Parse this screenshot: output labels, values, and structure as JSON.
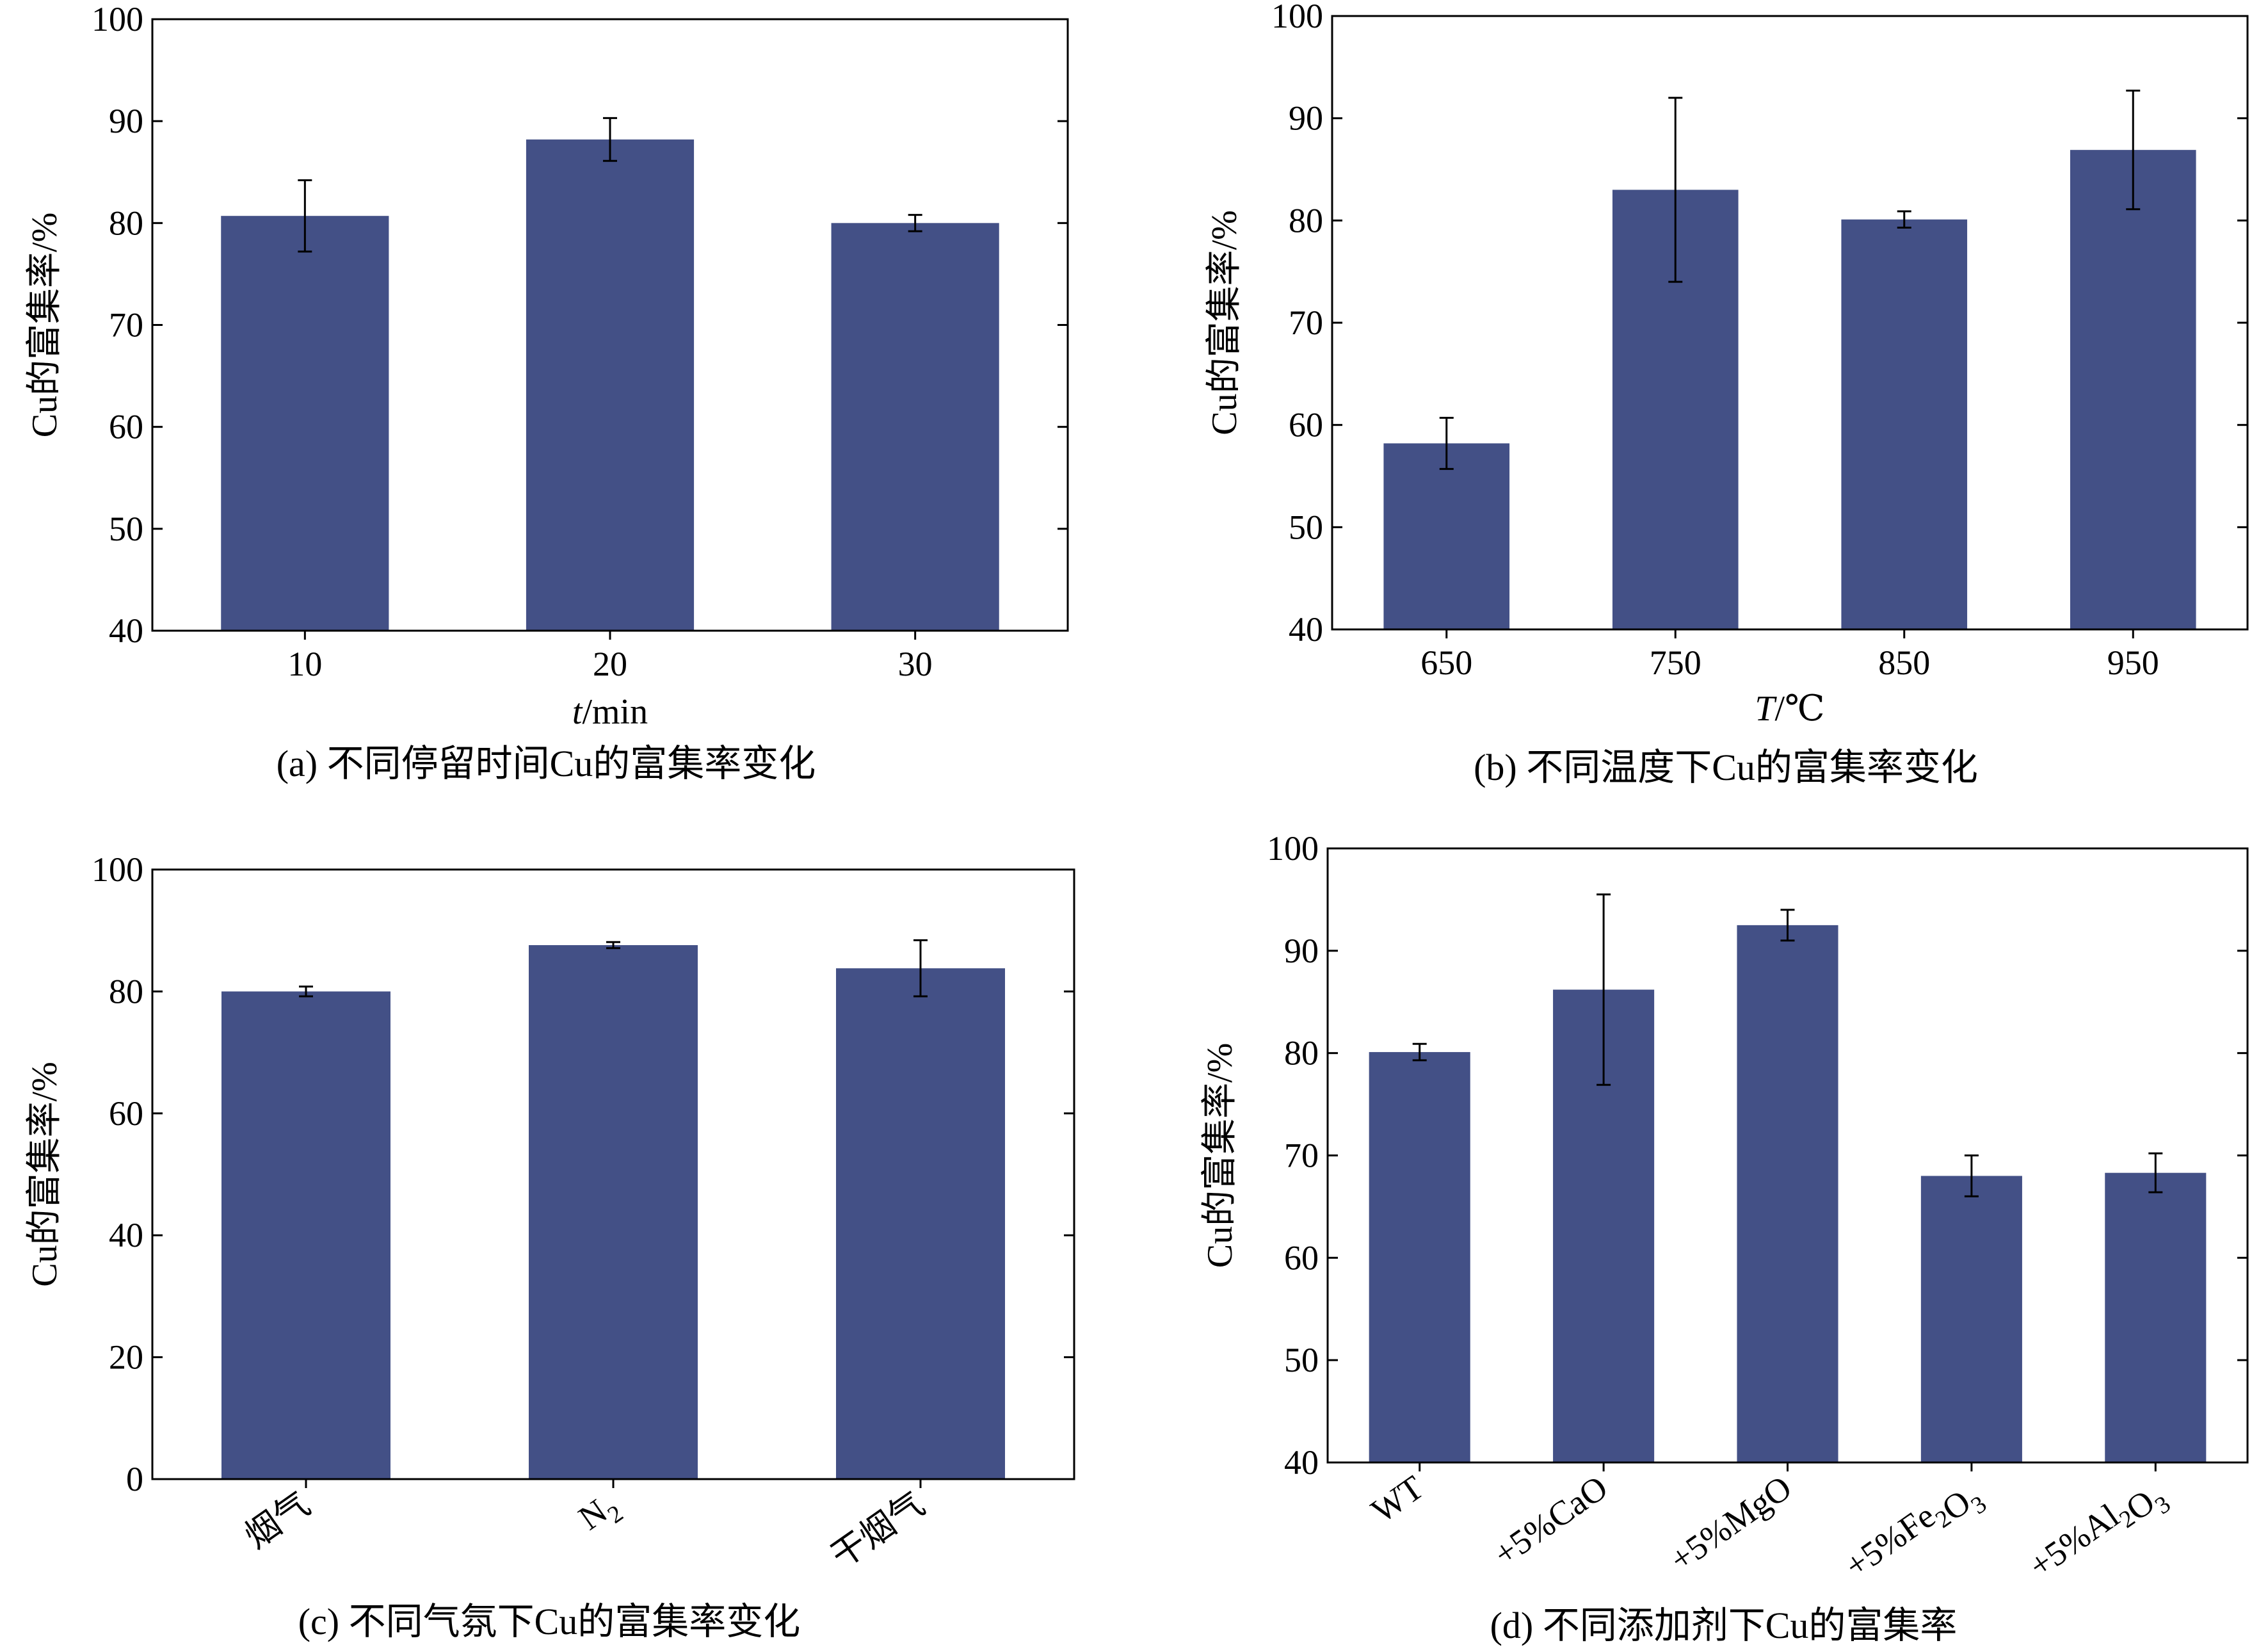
{
  "bar_color": "#435086",
  "chart_data": [
    {
      "panel": "a",
      "type": "bar",
      "caption": "(a) 不同停留时间Cu的富集率变化",
      "xlabel_italic": "t",
      "xlabel_rest": "/min",
      "ylabel": "Cu的富集率/%",
      "categories": [
        "10",
        "20",
        "30"
      ],
      "values": [
        80.7,
        88.2,
        80.0
      ],
      "errors": [
        3.5,
        2.1,
        0.8
      ],
      "ylim": [
        40,
        100
      ],
      "yticks": [
        40,
        50,
        60,
        70,
        80,
        90,
        100
      ],
      "grid": false
    },
    {
      "panel": "b",
      "type": "bar",
      "caption": "(b) 不同温度下Cu的富集率变化",
      "xlabel_italic": "T",
      "xlabel_rest": "/℃",
      "ylabel": "Cu的富集率/%",
      "categories": [
        "650",
        "750",
        "850",
        "950"
      ],
      "values": [
        58.2,
        83.0,
        80.1,
        86.9
      ],
      "errors": [
        2.5,
        9.0,
        0.8,
        5.8
      ],
      "ylim": [
        40,
        100
      ],
      "yticks": [
        40,
        50,
        60,
        70,
        80,
        90,
        100
      ],
      "grid": false
    },
    {
      "panel": "c",
      "type": "bar",
      "caption": "(c) 不同气氛下Cu的富集率变化",
      "xlabel_italic": "",
      "xlabel_rest": "",
      "ylabel": "Cu的富集率/%",
      "categories": [
        "烟气",
        "N₂",
        "干烟气"
      ],
      "values": [
        80.0,
        87.6,
        83.8
      ],
      "errors": [
        0.8,
        0.5,
        4.6
      ],
      "ylim": [
        0,
        100
      ],
      "yticks": [
        0,
        20,
        40,
        60,
        80,
        100
      ],
      "grid": false
    },
    {
      "panel": "d",
      "type": "bar",
      "caption": "(d) 不同添加剂下Cu的富集率",
      "xlabel_italic": "",
      "xlabel_rest": "",
      "ylabel": "Cu的富集率/%",
      "categories": [
        "WT",
        "+5%CaO",
        "+5%MgO",
        "+5%Fe₂O₃",
        "+5%Al₂O₃"
      ],
      "values": [
        80.1,
        86.2,
        92.5,
        68.0,
        68.3
      ],
      "errors": [
        0.8,
        9.3,
        1.5,
        2.0,
        1.9
      ],
      "ylim": [
        40,
        100
      ],
      "yticks": [
        40,
        50,
        60,
        70,
        80,
        90,
        100
      ],
      "grid": false
    }
  ]
}
